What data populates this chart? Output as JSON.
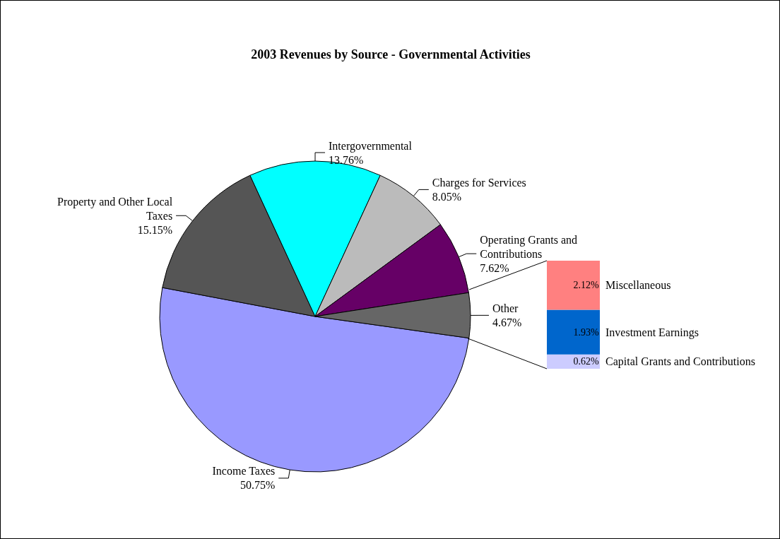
{
  "chart_data": [
    {
      "type": "pie",
      "title": "2003 Revenues by Source - Governmental Activities",
      "categories": [
        "Income Taxes",
        "Property and Other Local Taxes",
        "Intergovernmental",
        "Charges for Services",
        "Operating Grants and Contributions",
        "Other"
      ],
      "values": [
        50.75,
        15.15,
        13.76,
        8.05,
        7.62,
        4.67
      ],
      "colors": [
        "#9999ff",
        "#555555",
        "#00ffff",
        "#bbbbbb",
        "#660066",
        "#666666"
      ],
      "value_labels": [
        "50.75%",
        "15.15%",
        "13.76%",
        "8.05%",
        "7.62%",
        "4.67%"
      ]
    },
    {
      "type": "bar",
      "stacked": true,
      "categories": [
        null
      ],
      "series": [
        {
          "name": "Capital Grants and Contributions",
          "color": "#ccccff",
          "values": [
            0.62
          ],
          "value_labels": [
            "0.62%"
          ]
        },
        {
          "name": "Investment Earnings",
          "color": "#0066cc",
          "values": [
            1.93
          ],
          "value_labels": [
            "1.93%"
          ]
        },
        {
          "name": "Miscellaneous",
          "color": "#ff8080",
          "values": [
            2.12
          ],
          "value_labels": [
            "2.12%"
          ]
        }
      ]
    }
  ]
}
